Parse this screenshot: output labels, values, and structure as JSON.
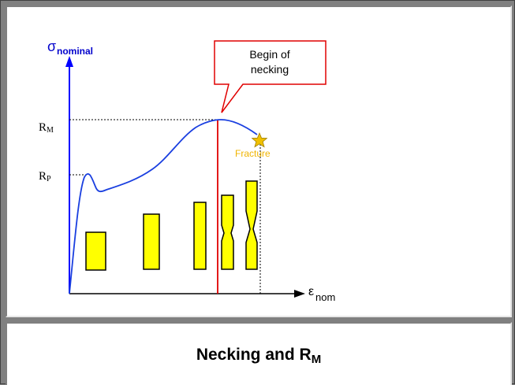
{
  "diagram": {
    "y_axis_symbol": "σ",
    "y_axis_sub": "nominal",
    "x_axis_symbol": "ε",
    "x_axis_sub": "nom",
    "rm_label_main": "R",
    "rm_label_sub": "M",
    "rp_label_main": "R",
    "rp_label_sub": "P",
    "callout_line1": "Begin of",
    "callout_line2": "necking",
    "fracture_label": "Fracture",
    "colors": {
      "curve": "#1a3fe0",
      "axis": "#0000ff",
      "necking_line": "#e00000",
      "specimen_fill": "#ffff00",
      "fracture_text": "#f0b400",
      "star": "#f0c000"
    }
  },
  "caption": {
    "main": "Necking and R",
    "sub": "M"
  }
}
